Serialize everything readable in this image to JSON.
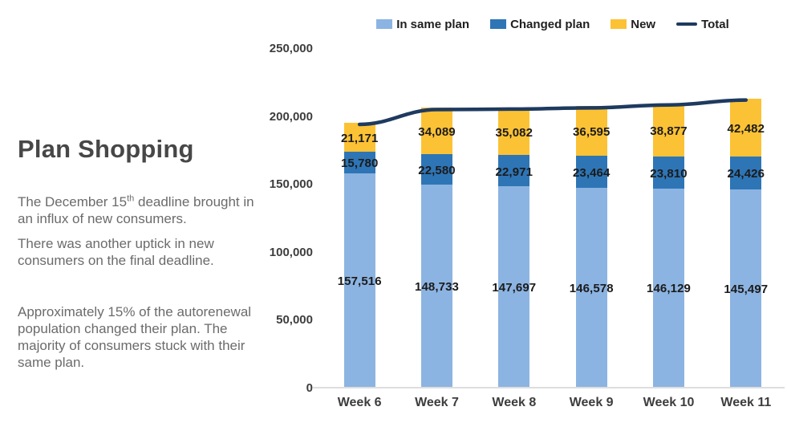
{
  "panel": {
    "title": "Plan Shopping",
    "p1_before": "The December 15",
    "p1_sup": "th",
    "p1_after": " deadline brought in an influx of new consumers.",
    "p2": "There was another uptick in new consumers on the final deadline.",
    "p3": "Approximately 15% of the autorenewal population changed their plan. The majority of consumers stuck with their same plan."
  },
  "legend": [
    {
      "label": "In same plan",
      "color": "#8CB4E2",
      "type": "swatch"
    },
    {
      "label": "Changed plan",
      "color": "#2E75B6",
      "type": "swatch"
    },
    {
      "label": "New",
      "color": "#FCC235",
      "type": "swatch"
    },
    {
      "label": "Total",
      "color": "#1E3A5F",
      "type": "line"
    }
  ],
  "chart_data": {
    "type": "bar",
    "subtype": "stacked-column-with-total-line",
    "categories": [
      "Week 6",
      "Week 7",
      "Week 8",
      "Week 9",
      "Week 10",
      "Week 11"
    ],
    "series": [
      {
        "name": "In same plan",
        "color": "#8CB4E2",
        "values": [
          157516,
          148733,
          147697,
          146578,
          146129,
          145497
        ]
      },
      {
        "name": "Changed plan",
        "color": "#2E75B6",
        "values": [
          15780,
          22580,
          22971,
          23464,
          23810,
          24426
        ]
      },
      {
        "name": "New",
        "color": "#FCC235",
        "values": [
          21171,
          34089,
          35082,
          36595,
          38877,
          42482
        ]
      }
    ],
    "line_series": {
      "name": "Total",
      "color": "#1E3A5F",
      "values": [
        194467,
        205402,
        205750,
        206637,
        208816,
        212405
      ]
    },
    "y_ticks": [
      "250,000",
      "200,000",
      "150,000",
      "100,000",
      "50,000",
      "0"
    ],
    "ylim": [
      0,
      250000
    ],
    "grid": false,
    "legend_position": "top",
    "data_labels": "centered-in-segment, thousands separators"
  }
}
